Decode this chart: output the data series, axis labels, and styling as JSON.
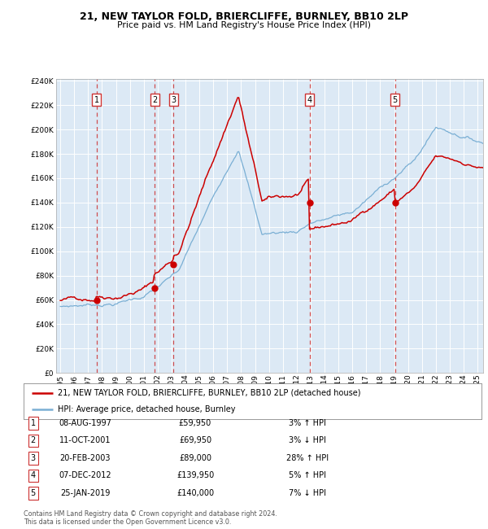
{
  "title": "21, NEW TAYLOR FOLD, BRIERCLIFFE, BURNLEY, BB10 2LP",
  "subtitle": "Price paid vs. HM Land Registry's House Price Index (HPI)",
  "footer1": "Contains HM Land Registry data © Crown copyright and database right 2024.",
  "footer2": "This data is licensed under the Open Government Licence v3.0.",
  "legend_label_red": "21, NEW TAYLOR FOLD, BRIERCLIFFE, BURNLEY, BB10 2LP (detached house)",
  "legend_label_blue": "HPI: Average price, detached house, Burnley",
  "sales": [
    {
      "num": 1,
      "year": 1997.6,
      "price": 59950
    },
    {
      "num": 2,
      "year": 2001.78,
      "price": 69950
    },
    {
      "num": 3,
      "year": 2003.13,
      "price": 89000
    },
    {
      "num": 4,
      "year": 2012.93,
      "price": 139950
    },
    {
      "num": 5,
      "year": 2019.07,
      "price": 140000
    }
  ],
  "table_rows": [
    [
      "1",
      "08-AUG-1997",
      "£59,950",
      "3% ↑ HPI"
    ],
    [
      "2",
      "11-OCT-2001",
      "£69,950",
      "3% ↓ HPI"
    ],
    [
      "3",
      "20-FEB-2003",
      "£89,000",
      "28% ↑ HPI"
    ],
    [
      "4",
      "07-DEC-2012",
      "£139,950",
      "5% ↑ HPI"
    ],
    [
      "5",
      "25-JAN-2019",
      "£140,000",
      "7% ↓ HPI"
    ]
  ],
  "ylim": [
    0,
    240000
  ],
  "xlim_start": 1994.7,
  "xlim_end": 2025.4,
  "bg_color": "#dce9f5",
  "red_color": "#cc0000",
  "blue_color": "#7aafd4",
  "grid_color": "#c8d8e8",
  "vline_color": "#cc3333"
}
